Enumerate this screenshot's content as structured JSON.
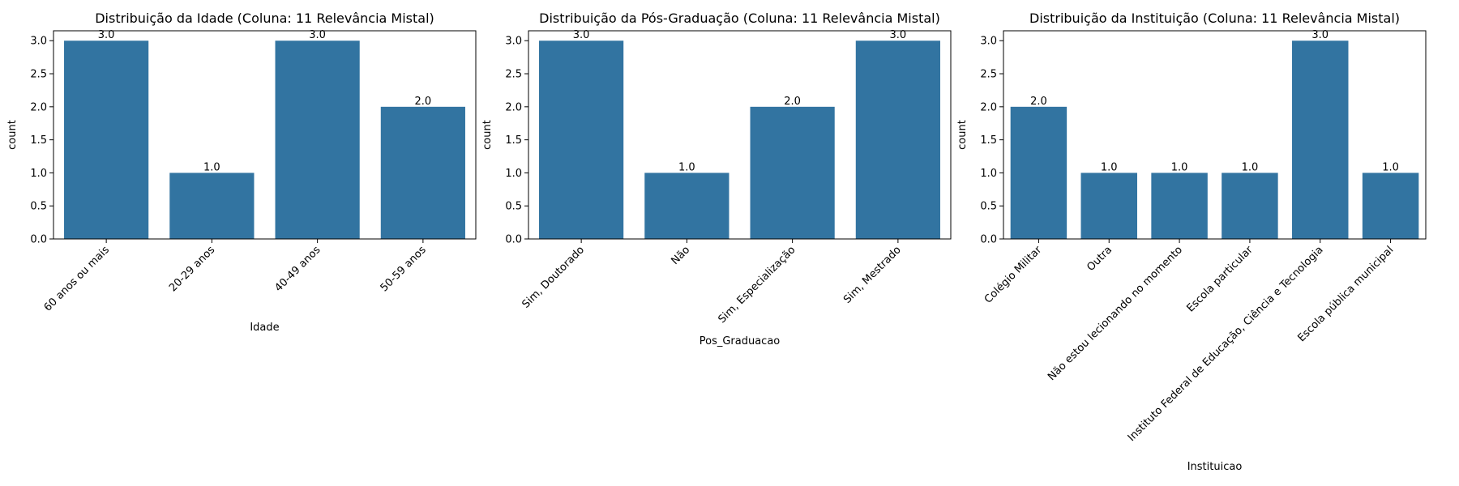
{
  "chart_data": [
    {
      "type": "bar",
      "title": "Distribuição da Idade (Coluna: 11 Relevância Mistal)",
      "xlabel": "Idade",
      "ylabel": "count",
      "categories": [
        "60 anos ou mais",
        "20-29 anos",
        "40-49 anos",
        "50-59 anos"
      ],
      "values": [
        3.0,
        1.0,
        3.0,
        2.0
      ],
      "data_labels": [
        "3.0",
        "1.0",
        "3.0",
        "2.0"
      ],
      "ylim": [
        0,
        3.15
      ],
      "yticks": [
        "0.0",
        "0.5",
        "1.0",
        "1.5",
        "2.0",
        "2.5",
        "3.0"
      ],
      "grid": false,
      "bar_color": "#3274a1"
    },
    {
      "type": "bar",
      "title": "Distribuição da Pós-Graduação (Coluna: 11 Relevância Mistal)",
      "xlabel": "Pos_Graduacao",
      "ylabel": "count",
      "categories": [
        "Sim, Doutorado",
        "Não",
        "Sim, Especialização",
        "Sim, Mestrado"
      ],
      "values": [
        3.0,
        1.0,
        2.0,
        3.0
      ],
      "data_labels": [
        "3.0",
        "1.0",
        "2.0",
        "3.0"
      ],
      "ylim": [
        0,
        3.15
      ],
      "yticks": [
        "0.0",
        "0.5",
        "1.0",
        "1.5",
        "2.0",
        "2.5",
        "3.0"
      ],
      "grid": false,
      "bar_color": "#3274a1"
    },
    {
      "type": "bar",
      "title": "Distribuição da Instituição (Coluna: 11 Relevância Mistal)",
      "xlabel": "Instituicao",
      "ylabel": "count",
      "categories": [
        "Colégio Militar",
        "Outra",
        "Não estou lecionando no momento",
        "Escola particular",
        "Instituto Federal de Educação, Ciência e Tecnologia",
        "Escola pública municipal"
      ],
      "values": [
        2.0,
        1.0,
        1.0,
        1.0,
        3.0,
        1.0
      ],
      "data_labels": [
        "2.0",
        "1.0",
        "1.0",
        "1.0",
        "3.0",
        "1.0"
      ],
      "ylim": [
        0,
        3.15
      ],
      "yticks": [
        "0.0",
        "0.5",
        "1.0",
        "1.5",
        "2.0",
        "2.5",
        "3.0"
      ],
      "grid": false,
      "bar_color": "#3274a1"
    }
  ]
}
